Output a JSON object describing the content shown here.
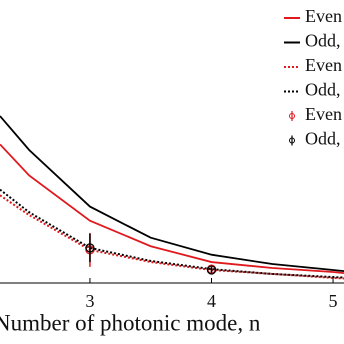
{
  "chart_data": {
    "type": "line",
    "xlabel": "Number of photonic mode, n",
    "xlim": [
      2.26,
      5.09
    ],
    "xticks": [
      3,
      4,
      5
    ],
    "ylim": [
      0,
      1
    ],
    "series": [
      {
        "name": "Even",
        "color": "#e0191e",
        "style": "solid",
        "x": [
          2.26,
          2.5,
          3,
          3.5,
          4,
          4.5,
          5,
          5.09
        ],
        "values": [
          0.49,
          0.38,
          0.22,
          0.13,
          0.074,
          0.053,
          0.039,
          0.035
        ]
      },
      {
        "name": "Odd,",
        "color": "#000000",
        "style": "solid",
        "x": [
          2.26,
          2.5,
          3,
          3.5,
          4,
          4.5,
          5,
          5.09
        ],
        "values": [
          0.59,
          0.47,
          0.27,
          0.16,
          0.1,
          0.067,
          0.046,
          0.042
        ]
      },
      {
        "name": "Even",
        "color": "#e0191e",
        "style": "dotted",
        "x": [
          2.26,
          2.5,
          3,
          3.5,
          4,
          4.5,
          5,
          5.09
        ],
        "values": [
          0.31,
          0.24,
          0.117,
          0.074,
          0.046,
          0.032,
          0.018,
          0.016
        ]
      },
      {
        "name": "Odd,",
        "color": "#000000",
        "style": "dotted",
        "x": [
          2.26,
          2.5,
          3,
          3.5,
          4,
          4.5,
          5,
          5.09
        ],
        "values": [
          0.33,
          0.25,
          0.124,
          0.078,
          0.049,
          0.032,
          0.021,
          0.019
        ]
      },
      {
        "name": "Even",
        "color": "#e0191e",
        "style": "points",
        "x": [
          3,
          4
        ],
        "values": [
          0.117,
          0.049
        ],
        "errors": [
          0.06,
          0.01
        ]
      },
      {
        "name": "Odd,",
        "color": "#000000",
        "style": "points",
        "x": [
          3,
          4
        ],
        "values": [
          0.124,
          0.046
        ],
        "errors": [
          0.05,
          0.01
        ]
      }
    ]
  }
}
